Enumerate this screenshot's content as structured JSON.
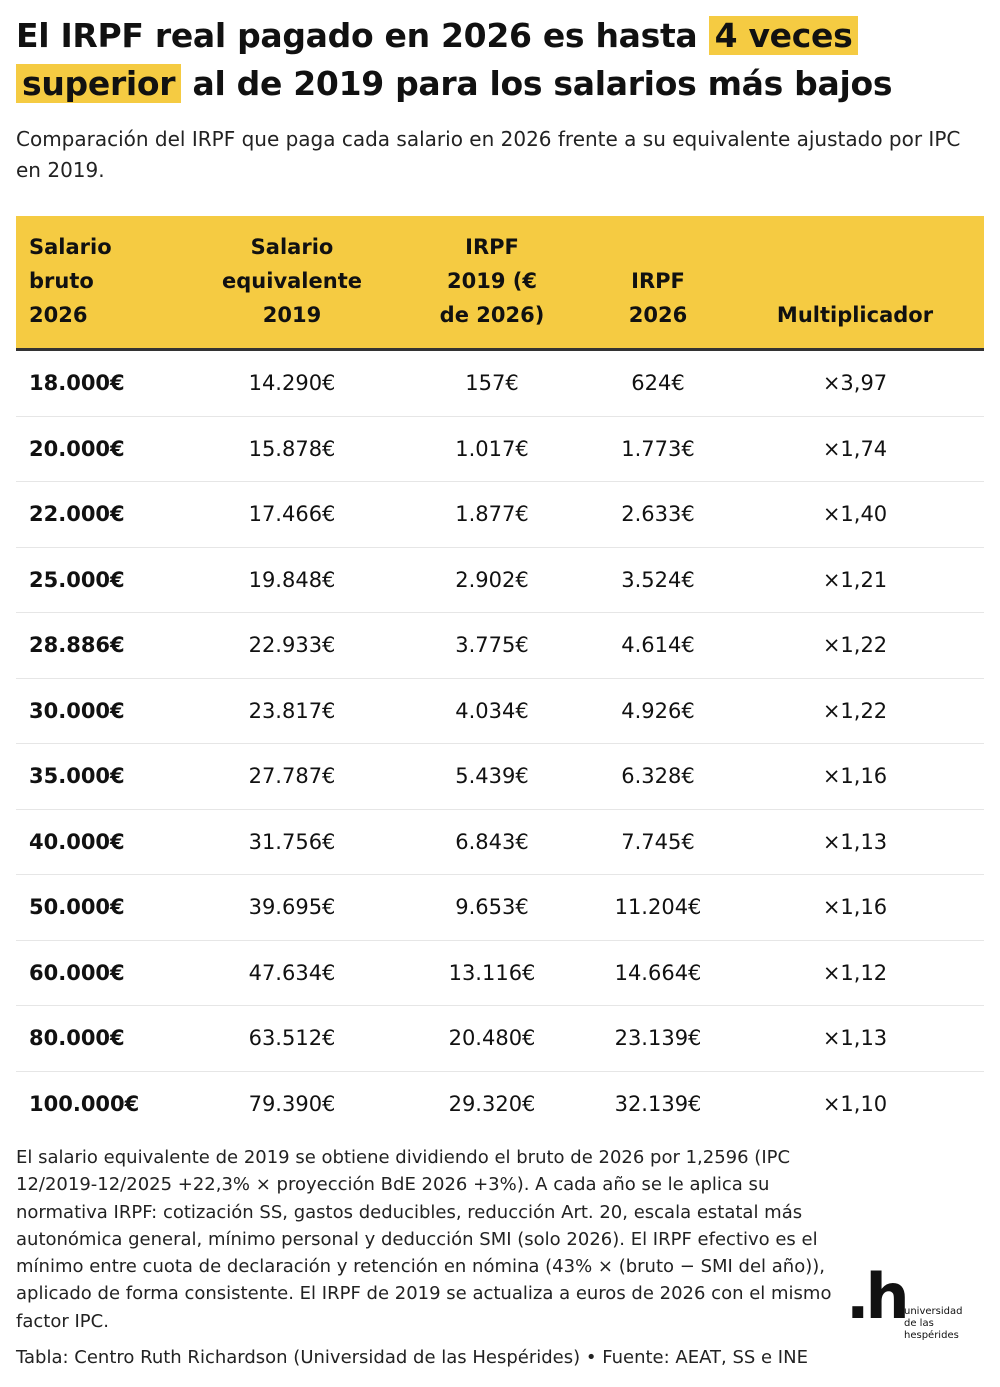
{
  "header": {
    "title": {
      "before": "El IRPF real pagado en 2026 es hasta",
      "highlight": "4 veces superior",
      "after": "al de 2019 para los salarios más bajos"
    },
    "subtitle": "Comparación del IRPF que paga cada salario en 2026 frente a su equivalente ajustado por IPC en 2019."
  },
  "table": {
    "columns": [
      [
        "Salario",
        "bruto",
        "2026"
      ],
      [
        "Salario",
        "equivalente",
        "2019"
      ],
      [
        "IRPF",
        "2019 (€",
        "de 2026)"
      ],
      [
        "IRPF",
        "2026"
      ],
      [
        "Multiplicador"
      ]
    ],
    "rows": [
      [
        "18.000€",
        "14.290€",
        "157€",
        "624€",
        "×3,97"
      ],
      [
        "20.000€",
        "15.878€",
        "1.017€",
        "1.773€",
        "×1,74"
      ],
      [
        "22.000€",
        "17.466€",
        "1.877€",
        "2.633€",
        "×1,40"
      ],
      [
        "25.000€",
        "19.848€",
        "2.902€",
        "3.524€",
        "×1,21"
      ],
      [
        "28.886€",
        "22.933€",
        "3.775€",
        "4.614€",
        "×1,22"
      ],
      [
        "30.000€",
        "23.817€",
        "4.034€",
        "4.926€",
        "×1,22"
      ],
      [
        "35.000€",
        "27.787€",
        "5.439€",
        "6.328€",
        "×1,16"
      ],
      [
        "40.000€",
        "31.756€",
        "6.843€",
        "7.745€",
        "×1,13"
      ],
      [
        "50.000€",
        "39.695€",
        "9.653€",
        "11.204€",
        "×1,16"
      ],
      [
        "60.000€",
        "47.634€",
        "13.116€",
        "14.664€",
        "×1,12"
      ],
      [
        "80.000€",
        "63.512€",
        "20.480€",
        "23.139€",
        "×1,13"
      ],
      [
        "100.000€",
        "79.390€",
        "29.320€",
        "32.139€",
        "×1,10"
      ]
    ]
  },
  "footer": {
    "note": "El salario equivalente de 2019 se obtiene dividiendo el bruto de 2026 por 1,2596 (IPC 12/2019-12/2025 +22,3% × proyección BdE 2026 +3%). A cada año se le aplica su normativa IRPF: cotización SS, gastos deducibles, reducción Art. 20, escala estatal más autonómica general, mínimo personal y deducción SMI (solo 2026). El IRPF efectivo es el mínimo entre cuota de declaración y retención en nómina (43% × (bruto − SMI del año)), aplicado de forma consistente. El IRPF de 2019 se actualiza a euros de 2026 con el mismo factor IPC.",
    "source": "Tabla: Centro Ruth Richardson (Universidad de las Hespérides) • Fuente: AEAT, SS e INE"
  },
  "logo": {
    "mark": ".h",
    "lines": [
      "universidad",
      "de las",
      "hespérides"
    ]
  }
}
